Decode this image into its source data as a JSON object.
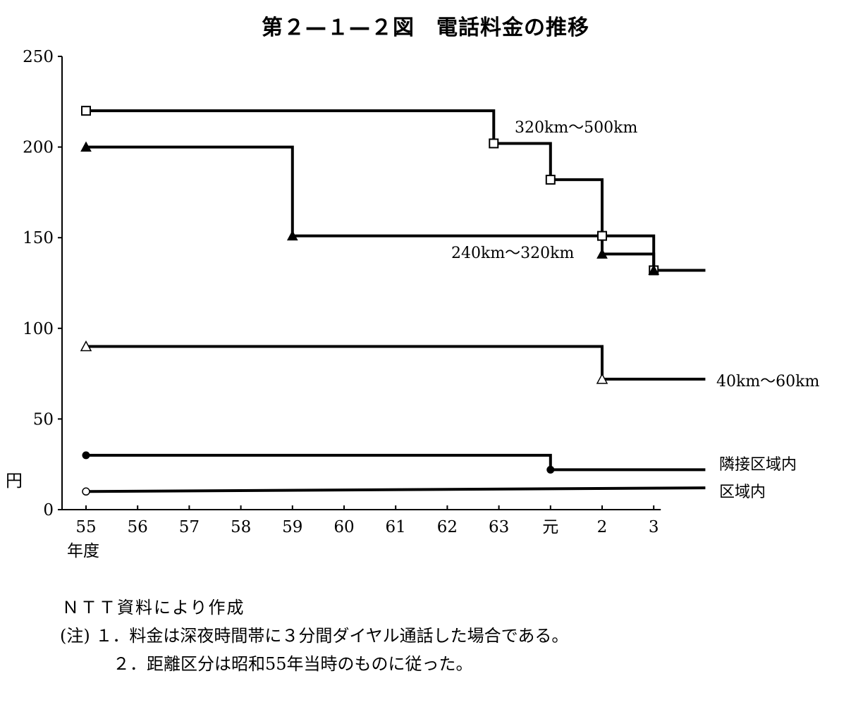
{
  "title": "第２—１—２図　電話料金の推移",
  "ylabel": "円",
  "xunit": "年度",
  "notes": [
    "ＮＴＴ資料により作成",
    "(注) １．料金は深夜時間帯に３分間ダイヤル通話した場合である。",
    "２．距離区分は昭和55年当時のものに従った。"
  ],
  "chart_data": {
    "type": "line",
    "title": "第２—１—２図　電話料金の推移",
    "xlabel": "年度",
    "ylabel": "円",
    "ylim": [
      0,
      250
    ],
    "yticks": [
      0,
      50,
      100,
      150,
      200,
      250
    ],
    "xticks": [
      "55",
      "56",
      "57",
      "58",
      "59",
      "60",
      "61",
      "62",
      "63",
      "元",
      "2",
      "3"
    ],
    "xlim": [
      55,
      67
    ],
    "step": true,
    "series": [
      {
        "name": "320km～500km",
        "marker": "square-open",
        "points": [
          [
            55,
            220
          ],
          [
            62.9,
            202
          ],
          [
            64,
            182
          ],
          [
            65,
            151
          ],
          [
            66,
            132
          ],
          [
            67.0,
            132
          ]
        ]
      },
      {
        "name": "240km～320km",
        "marker": "triangle-filled",
        "points": [
          [
            55,
            200
          ],
          [
            59,
            151
          ],
          [
            65,
            141
          ],
          [
            66,
            132
          ],
          [
            67.0,
            132
          ]
        ]
      },
      {
        "name": "40km～60km",
        "marker": "triangle-open",
        "points": [
          [
            55,
            90
          ],
          [
            65,
            72
          ],
          [
            67.0,
            72
          ]
        ]
      },
      {
        "name": "隣接区域内",
        "marker": "circle-filled",
        "points": [
          [
            55,
            30
          ],
          [
            64,
            22
          ],
          [
            67.0,
            22
          ]
        ]
      },
      {
        "name": "区域内",
        "marker": "circle-open",
        "points": [
          [
            55,
            10
          ],
          [
            67.0,
            12
          ]
        ]
      }
    ]
  }
}
